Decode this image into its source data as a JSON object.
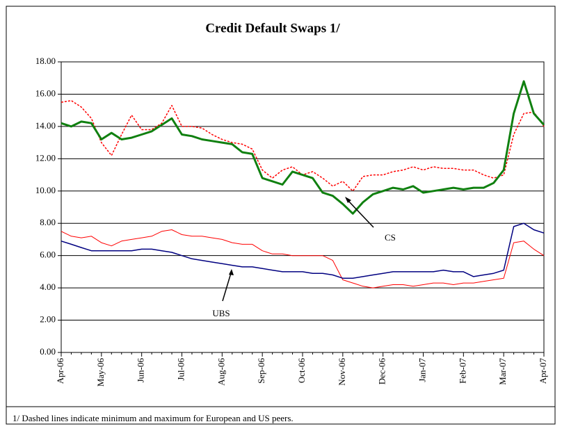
{
  "chart_data": {
    "type": "line",
    "title": "Credit Default Swaps 1/",
    "footnote": "1/ Dashed lines indicate minimum and maximum for European and US peers.",
    "categories": [
      "Apr-06",
      null,
      null,
      null,
      "May-06",
      null,
      null,
      null,
      "Jun-06",
      null,
      null,
      null,
      "Jul-06",
      null,
      null,
      null,
      "Aug-06",
      null,
      null,
      null,
      "Sep-06",
      null,
      null,
      null,
      "Oct-06",
      null,
      null,
      null,
      "Nov-06",
      null,
      null,
      null,
      "Dec-06",
      null,
      null,
      null,
      "Jan-07",
      null,
      null,
      null,
      "Feb-07",
      null,
      null,
      null,
      "Mar-07",
      null,
      null,
      null,
      "Apr-07"
    ],
    "ylim": [
      0,
      18
    ],
    "yticks": [
      {
        "value": 0,
        "label": "0.00"
      },
      {
        "value": 2,
        "label": "2.00"
      },
      {
        "value": 4,
        "label": "4.00"
      },
      {
        "value": 6,
        "label": "6.00"
      },
      {
        "value": 8,
        "label": "8.00"
      },
      {
        "value": 10,
        "label": "10.00"
      },
      {
        "value": 12,
        "label": "12.00"
      },
      {
        "value": 14,
        "label": "14.00"
      },
      {
        "value": 16,
        "label": "16.00"
      },
      {
        "value": 18,
        "label": "18.00"
      }
    ],
    "grid": true,
    "series": [
      {
        "color": "#ff0000",
        "dash": true,
        "width": 1.5,
        "values": [
          15.5,
          15.6,
          15.2,
          14.5,
          13.0,
          12.2,
          13.5,
          14.7,
          13.8,
          13.8,
          14.2,
          15.3,
          14.0,
          14.0,
          13.9,
          13.5,
          13.2,
          13.0,
          12.9,
          12.6,
          11.3,
          10.8,
          11.3,
          11.5,
          11.0,
          11.2,
          10.8,
          10.3,
          10.6,
          10.0,
          10.9,
          11.0,
          11.0,
          11.2,
          11.3,
          11.5,
          11.3,
          11.5,
          11.4,
          11.4,
          11.3,
          11.3,
          11.0,
          10.8,
          11.0,
          13.5,
          14.8,
          14.9,
          14.0
        ]
      },
      {
        "color": "#ff0000",
        "dash": false,
        "width": 1,
        "values": [
          7.5,
          7.2,
          7.1,
          7.2,
          6.8,
          6.6,
          6.9,
          7.0,
          7.1,
          7.2,
          7.5,
          7.6,
          7.3,
          7.2,
          7.2,
          7.1,
          7.0,
          6.8,
          6.7,
          6.7,
          6.3,
          6.1,
          6.1,
          6.0,
          6.0,
          6.0,
          6.0,
          5.7,
          4.5,
          4.3,
          4.1,
          4.0,
          4.1,
          4.2,
          4.2,
          4.1,
          4.2,
          4.3,
          4.3,
          4.2,
          4.3,
          4.3,
          4.4,
          4.5,
          4.6,
          6.8,
          6.9,
          6.4,
          6.0
        ]
      },
      {
        "name": "UBS",
        "color": "#000080",
        "dash": false,
        "width": 1.5,
        "values": [
          6.9,
          6.7,
          6.5,
          6.3,
          6.3,
          6.3,
          6.3,
          6.3,
          6.4,
          6.4,
          6.3,
          6.2,
          6.0,
          5.8,
          5.7,
          5.6,
          5.5,
          5.4,
          5.3,
          5.3,
          5.2,
          5.1,
          5.0,
          5.0,
          5.0,
          4.9,
          4.9,
          4.8,
          4.6,
          4.6,
          4.7,
          4.8,
          4.9,
          5.0,
          5.0,
          5.0,
          5.0,
          5.0,
          5.1,
          5.0,
          5.0,
          4.7,
          4.8,
          4.9,
          5.1,
          7.8,
          8.0,
          7.6,
          7.4
        ]
      },
      {
        "name": "CS",
        "color": "#108010",
        "dash": false,
        "width": 3,
        "values": [
          14.2,
          14.0,
          14.3,
          14.2,
          13.2,
          13.6,
          13.2,
          13.3,
          13.5,
          13.7,
          14.1,
          14.5,
          13.5,
          13.4,
          13.2,
          13.1,
          13.0,
          12.9,
          12.4,
          12.3,
          10.8,
          10.6,
          10.4,
          11.2,
          11.0,
          10.8,
          9.9,
          9.7,
          9.2,
          8.6,
          9.3,
          9.8,
          10.0,
          10.2,
          10.1,
          10.3,
          9.9,
          10.0,
          10.1,
          10.2,
          10.1,
          10.2,
          10.2,
          10.5,
          11.3,
          14.8,
          16.8,
          14.8,
          14.1
        ]
      }
    ]
  }
}
